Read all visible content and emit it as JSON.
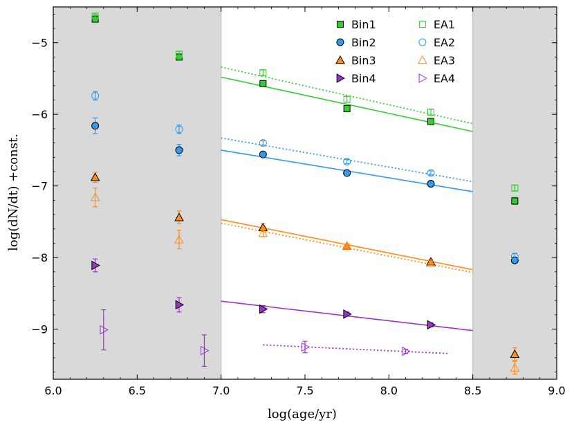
{
  "chart_data": {
    "type": "scatter",
    "xlabel": "log(age/yr)",
    "ylabel": "log(dN/dt) +const.",
    "xlim": [
      6.0,
      9.0
    ],
    "ylim": [
      -9.7,
      -4.5
    ],
    "xticks": [
      6.0,
      6.5,
      7.0,
      7.5,
      8.0,
      8.5,
      9.0
    ],
    "xtick_labels": [
      "6.0",
      "6.5",
      "7.0",
      "7.5",
      "8.0",
      "8.5",
      "9.0"
    ],
    "yticks": [
      -5,
      -6,
      -7,
      -8,
      -9
    ],
    "ytick_labels": [
      "−5",
      "−6",
      "−7",
      "−8",
      "−9"
    ],
    "grid": false,
    "shaded_regions": [
      [
        6.0,
        7.0
      ],
      [
        8.5,
        9.0
      ]
    ],
    "legend_position": "top-right",
    "colors": {
      "green": "#33cc33",
      "blue": "#3399ee",
      "orange": "#ff8c1a",
      "purple": "#9933cc",
      "shade": "#d9d9d9",
      "divider": "#c8c8c8"
    },
    "series": [
      {
        "name": "Bin1",
        "color": "#33cc33",
        "marker": "square",
        "filled": true,
        "x": [
          6.25,
          6.75,
          7.25,
          7.75,
          8.25,
          8.75
        ],
        "y": [
          -4.67,
          -5.2,
          -5.57,
          -5.92,
          -6.1,
          -7.21
        ],
        "err": [
          0.03,
          0.04,
          0.04,
          0.04,
          0.04,
          0.05
        ]
      },
      {
        "name": "Bin2",
        "color": "#3399ee",
        "marker": "circle",
        "filled": true,
        "x": [
          6.25,
          6.75,
          7.25,
          7.75,
          8.25,
          8.75
        ],
        "y": [
          -6.16,
          -6.5,
          -6.56,
          -6.82,
          -6.97,
          -8.04
        ],
        "err": [
          0.11,
          0.08,
          0.03,
          0.03,
          0.03,
          0.04
        ]
      },
      {
        "name": "Bin3",
        "color": "#ff8c1a",
        "marker": "triangle-up",
        "filled": true,
        "x": [
          6.25,
          6.75,
          7.25,
          7.75,
          8.25,
          8.75
        ],
        "y": [
          -6.88,
          -7.44,
          -7.58,
          -7.84,
          -8.06,
          -9.35
        ],
        "err": [
          0.07,
          0.09,
          0.05,
          0.03,
          0.03,
          0.09
        ]
      },
      {
        "name": "Bin4",
        "color": "#9933cc",
        "marker": "triangle-right",
        "filled": true,
        "x": [
          6.25,
          6.75,
          7.25,
          7.75,
          8.25
        ],
        "y": [
          -8.11,
          -8.66,
          -8.72,
          -8.79,
          -8.94
        ],
        "err": [
          0.09,
          0.1,
          0.05,
          0.03,
          0.03
        ]
      },
      {
        "name": "EA1",
        "color": "#33cc33",
        "marker": "square",
        "filled": false,
        "x": [
          6.25,
          6.75,
          7.25,
          7.75,
          8.25,
          8.75
        ],
        "y": [
          -4.63,
          -5.16,
          -5.42,
          -5.79,
          -5.97,
          -7.03
        ],
        "err": [
          0.03,
          0.04,
          0.04,
          0.04,
          0.04,
          0.04
        ]
      },
      {
        "name": "EA2",
        "color": "#3399ee",
        "marker": "circle",
        "filled": false,
        "x": [
          6.25,
          6.75,
          7.25,
          7.75,
          8.25,
          8.75
        ],
        "y": [
          -5.74,
          -6.21,
          -6.4,
          -6.66,
          -6.82,
          -7.99
        ],
        "err": [
          0.06,
          0.06,
          0.03,
          0.03,
          0.03,
          0.05
        ]
      },
      {
        "name": "EA3",
        "color": "#ff8c1a",
        "marker": "triangle-up",
        "filled": false,
        "x": [
          6.25,
          6.75,
          7.25,
          7.75,
          8.25,
          8.75
        ],
        "y": [
          -7.16,
          -7.75,
          -7.66,
          -7.84,
          -8.08,
          -9.54
        ],
        "err": [
          0.13,
          0.13,
          0.05,
          0.03,
          0.03,
          0.09
        ]
      },
      {
        "name": "EA4",
        "color": "#9933cc",
        "marker": "triangle-right",
        "filled": false,
        "x": [
          6.3,
          6.9,
          7.5,
          8.1
        ],
        "y": [
          -9.01,
          -9.3,
          -9.25,
          -9.31
        ],
        "err": [
          0.28,
          0.22,
          0.08,
          0.03
        ]
      }
    ],
    "fit_lines": [
      {
        "name": "Bin1 fit",
        "color": "#33cc33",
        "style": "solid",
        "x": [
          7.0,
          8.5
        ],
        "y": [
          -5.48,
          -6.24
        ]
      },
      {
        "name": "EA1 fit",
        "color": "#33cc33",
        "style": "dotted",
        "x": [
          7.0,
          8.5
        ],
        "y": [
          -5.34,
          -6.13
        ]
      },
      {
        "name": "Bin2 fit",
        "color": "#3399ee",
        "style": "solid",
        "x": [
          7.0,
          8.5
        ],
        "y": [
          -6.5,
          -7.08
        ]
      },
      {
        "name": "EA2 fit",
        "color": "#3399ee",
        "style": "dotted",
        "x": [
          7.0,
          8.5
        ],
        "y": [
          -6.33,
          -6.94
        ]
      },
      {
        "name": "Bin3 fit",
        "color": "#ff8c1a",
        "style": "solid",
        "x": [
          7.0,
          8.5
        ],
        "y": [
          -7.47,
          -8.17
        ]
      },
      {
        "name": "EA3 fit",
        "color": "#ff8c1a",
        "style": "dotted",
        "x": [
          7.0,
          8.5
        ],
        "y": [
          -7.52,
          -8.21
        ]
      },
      {
        "name": "Bin4 fit",
        "color": "#9933cc",
        "style": "solid",
        "x": [
          7.0,
          8.5
        ],
        "y": [
          -8.61,
          -9.02
        ]
      },
      {
        "name": "EA4 fit",
        "color": "#9933cc",
        "style": "dotted",
        "x": [
          7.25,
          8.35
        ],
        "y": [
          -9.22,
          -9.34
        ]
      }
    ],
    "legend": [
      {
        "label": "Bin1",
        "series": 0
      },
      {
        "label": "Bin2",
        "series": 1
      },
      {
        "label": "Bin3",
        "series": 2
      },
      {
        "label": "Bin4",
        "series": 3
      },
      {
        "label": "EA1",
        "series": 4
      },
      {
        "label": "EA2",
        "series": 5
      },
      {
        "label": "EA3",
        "series": 6
      },
      {
        "label": "EA4",
        "series": 7
      }
    ]
  }
}
